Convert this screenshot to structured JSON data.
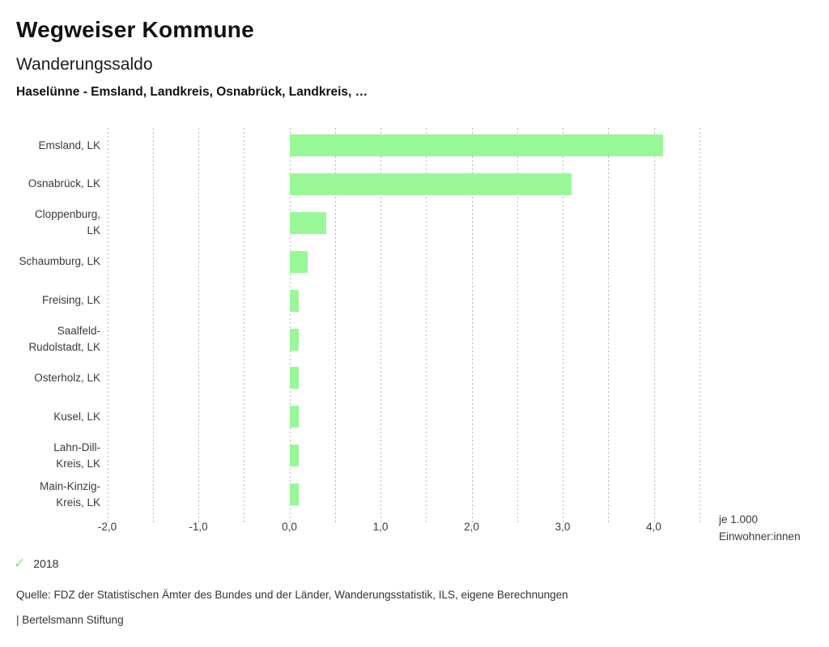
{
  "header": {
    "title": "Wegweiser Kommune",
    "subtitle": "Wanderungssaldo",
    "selection": "Haselünne - Emsland, Landkreis, Osnabrück, Landkreis, …"
  },
  "chart_data": {
    "type": "bar",
    "orientation": "horizontal",
    "title": "Wanderungssaldo",
    "categories": [
      "Emsland, LK",
      "Osnabrück, LK",
      "Cloppenburg,\nLK",
      "Schaumburg, LK",
      "Freising, LK",
      "Saalfeld-\nRudolstadt, LK",
      "Osterholz, LK",
      "Kusel, LK",
      "Lahn-Dill-\nKreis, LK",
      "Main-Kinzig-\nKreis, LK"
    ],
    "values": [
      4.1,
      3.1,
      0.4,
      0.2,
      0.1,
      0.1,
      0.1,
      0.1,
      0.1,
      0.1
    ],
    "series": [
      {
        "name": "2018",
        "values": [
          4.1,
          3.1,
          0.4,
          0.2,
          0.1,
          0.1,
          0.1,
          0.1,
          0.1,
          0.1
        ]
      }
    ],
    "xlim": [
      -2.0,
      4.5
    ],
    "gridline_step": 0.5,
    "grid": true,
    "x_tick_values": [
      -2,
      -1,
      0,
      1,
      2,
      3,
      4
    ],
    "x_tick_labels": [
      "-2,0",
      "-1,0",
      "0,0",
      "1,0",
      "2,0",
      "3,0",
      "4,0"
    ],
    "unit_label": "je 1.000\nEinwohner:innen",
    "bar_color": "#98f898",
    "gridline_color": "#b3b3b3"
  },
  "legend": {
    "year": "2018",
    "check_icon": "✓",
    "check_color": "#8bdc8b"
  },
  "footer": {
    "source": "Quelle: FDZ der Statistischen Ämter des Bundes und der Länder, Wanderungsstatistik, ILS, eigene Berechnungen",
    "brand": "| Bertelsmann Stiftung"
  }
}
